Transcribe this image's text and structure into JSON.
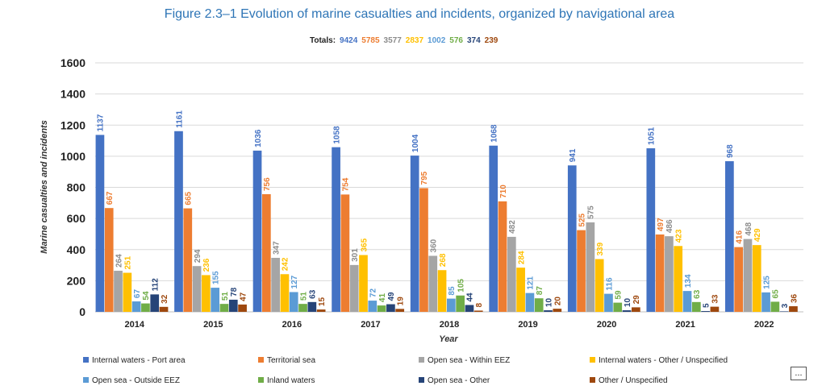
{
  "chart_data": {
    "type": "bar",
    "title": "Figure 2.3–1 Evolution of marine casualties and incidents, organized by navigational area",
    "totals_label": "Totals:",
    "totals": [
      "9424",
      "5785",
      "3577",
      "2837",
      "1002",
      "576",
      "374",
      "239"
    ],
    "xlabel": "Year",
    "ylabel": "Marine casualties and incidents",
    "ylim": [
      0,
      1600
    ],
    "yticks": [
      "0",
      "200",
      "400",
      "600",
      "800",
      "1000",
      "1200",
      "1400",
      "1600"
    ],
    "categories": [
      "2014",
      "2015",
      "2016",
      "2017",
      "2018",
      "2019",
      "2020",
      "2021",
      "2022"
    ],
    "legend_position": "bottom",
    "series": [
      {
        "name": "Internal waters - Port area",
        "color": "#4472c4",
        "label_color": "#4472c4",
        "values": [
          1137,
          1161,
          1036,
          1058,
          1004,
          1068,
          941,
          1051,
          968
        ]
      },
      {
        "name": "Territorial sea",
        "color": "#ed7d31",
        "label_color": "#ed7d31",
        "values": [
          667,
          665,
          756,
          754,
          795,
          710,
          525,
          497,
          416
        ]
      },
      {
        "name": "Open sea - Within EEZ",
        "color": "#a5a5a5",
        "label_color": "#8c8c8c",
        "values": [
          264,
          294,
          347,
          301,
          360,
          482,
          575,
          486,
          468
        ]
      },
      {
        "name": "Internal waters - Other / Unspecified",
        "color": "#ffc000",
        "label_color": "#ffc000",
        "values": [
          251,
          236,
          242,
          365,
          268,
          284,
          339,
          423,
          429
        ]
      },
      {
        "name": "Open sea - Outside EEZ",
        "color": "#5b9bd5",
        "label_color": "#5b9bd5",
        "values": [
          67,
          155,
          127,
          72,
          85,
          121,
          116,
          134,
          125
        ]
      },
      {
        "name": "Inland waters",
        "color": "#70ad47",
        "label_color": "#70ad47",
        "values": [
          54,
          51,
          51,
          41,
          105,
          87,
          59,
          63,
          65
        ]
      },
      {
        "name": "Open sea - Other",
        "color": "#264478",
        "label_color": "#264478",
        "values": [
          112,
          78,
          63,
          49,
          44,
          10,
          10,
          5,
          3
        ]
      },
      {
        "name": "Other / Unspecified",
        "color": "#9e480e",
        "label_color": "#9e480e",
        "values": [
          32,
          47,
          15,
          19,
          8,
          20,
          29,
          33,
          36
        ]
      }
    ]
  },
  "more_button": {
    "label": "..."
  }
}
